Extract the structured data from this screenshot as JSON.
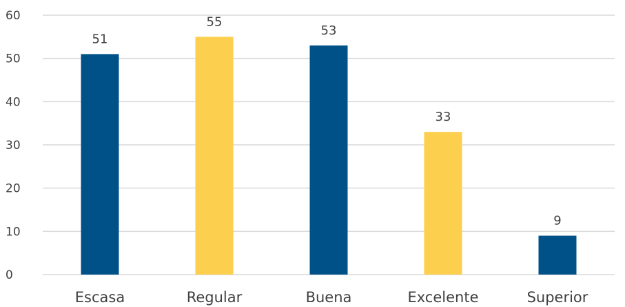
{
  "chart_data": {
    "type": "bar",
    "categories": [
      "Escasa",
      "Regular",
      "Buena",
      "Excelente",
      "Superior"
    ],
    "values": [
      51,
      55,
      53,
      33,
      9
    ],
    "data_labels": [
      "51",
      "55",
      "53",
      "33",
      "9"
    ],
    "bar_colors": [
      "#005188",
      "#FDCF4E",
      "#005188",
      "#FDCF4E",
      "#005188"
    ],
    "title": "",
    "xlabel": "",
    "ylabel": "",
    "ylim": [
      0,
      60
    ],
    "yticks": [
      0,
      10,
      20,
      30,
      40,
      50,
      60
    ],
    "ytick_labels": [
      "0",
      "10",
      "20",
      "30",
      "40",
      "50",
      "60"
    ],
    "grid": "horizontal",
    "legend": "none"
  },
  "colors": {
    "gridline": "#D9D9D9",
    "text": "#404040"
  }
}
